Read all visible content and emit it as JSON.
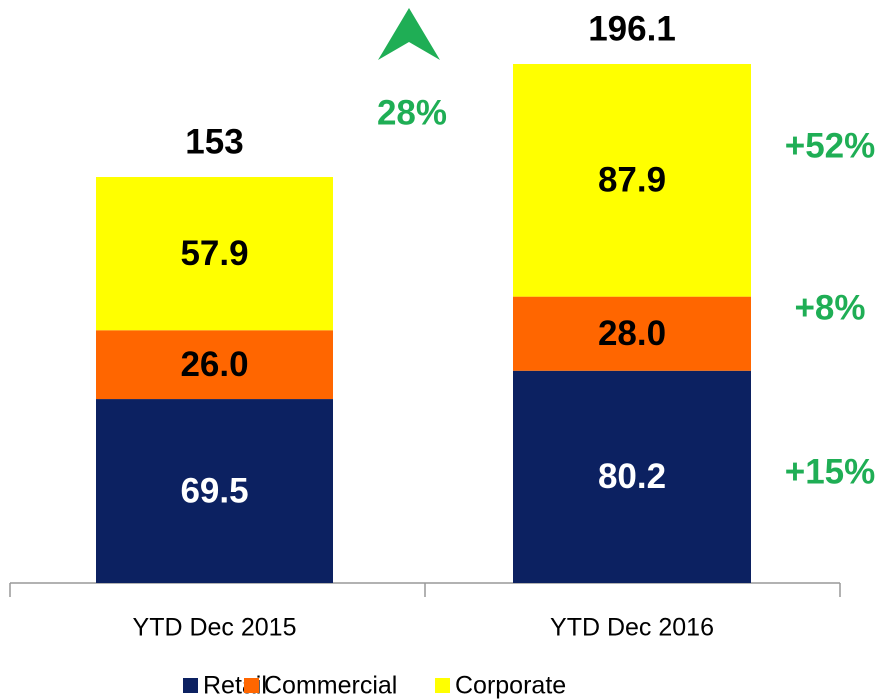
{
  "chart_data": {
    "type": "stacked_bar",
    "categories": [
      "YTD Dec 2015",
      "YTD Dec 2016"
    ],
    "series": [
      {
        "name": "Retail",
        "color": "#0c2161",
        "label_color": "#ffffff",
        "values": [
          69.5,
          80.2
        ],
        "change": "+15%"
      },
      {
        "name": "Commercial",
        "color": "#ff6600",
        "label_color": "#000000",
        "values": [
          26.0,
          28.0
        ],
        "value_labels": [
          "26.0",
          "28.0"
        ],
        "change": "+8%"
      },
      {
        "name": "Corporate",
        "color": "#ffff00",
        "label_color": "#000000",
        "values": [
          57.9,
          87.9
        ],
        "change": "+52%"
      }
    ],
    "totals": [
      153,
      196.1
    ],
    "total_growth": "28%",
    "annotation_color": "#1fae55"
  }
}
